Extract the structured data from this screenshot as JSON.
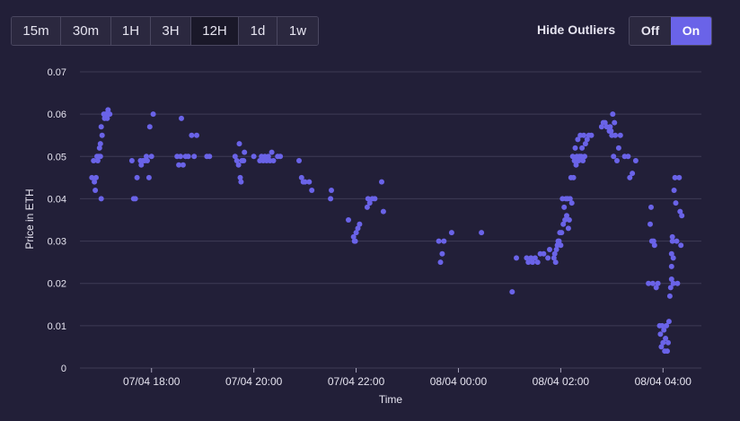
{
  "controls": {
    "time_ranges": [
      {
        "label": "15m",
        "active": false
      },
      {
        "label": "30m",
        "active": false
      },
      {
        "label": "1H",
        "active": false
      },
      {
        "label": "3H",
        "active": false
      },
      {
        "label": "12H",
        "active": true
      },
      {
        "label": "1d",
        "active": false
      },
      {
        "label": "1w",
        "active": false
      }
    ],
    "outlier_label": "Hide Outliers",
    "outlier_off": "Off",
    "outlier_on": "On",
    "outlier_selected": "On"
  },
  "colors": {
    "background": "#221f38",
    "grid": "#3e3b55",
    "point": "#6a63e8",
    "accent": "#6a63e8"
  },
  "chart_data": {
    "type": "scatter",
    "xlabel": "Time",
    "ylabel": "Price in ETH",
    "xlim": [
      "2022-04-07 16:36",
      "2022-04-08 04:45"
    ],
    "ylim": [
      0,
      0.07
    ],
    "yticks": [
      "0",
      "0.01",
      "0.02",
      "0.03",
      "0.04",
      "0.05",
      "0.06",
      "0.07"
    ],
    "xticks": [
      {
        "t": "2022-04-07 18:00",
        "label": "07/04 18:00"
      },
      {
        "t": "2022-04-07 20:00",
        "label": "07/04 20:00"
      },
      {
        "t": "2022-04-07 22:00",
        "label": "07/04 22:00"
      },
      {
        "t": "2022-04-08 00:00",
        "label": "08/04 00:00"
      },
      {
        "t": "2022-04-08 02:00",
        "label": "08/04 02:00"
      },
      {
        "t": "2022-04-08 04:00",
        "label": "08/04 04:00"
      }
    ],
    "grid": true,
    "legend": "none",
    "points": [
      [
        "2022-04-07 16:50",
        0.045
      ],
      [
        "2022-04-07 16:52",
        0.049
      ],
      [
        "2022-04-07 16:53",
        0.044
      ],
      [
        "2022-04-07 16:54",
        0.042
      ],
      [
        "2022-04-07 16:55",
        0.045
      ],
      [
        "2022-04-07 16:56",
        0.05
      ],
      [
        "2022-04-07 16:57",
        0.049
      ],
      [
        "2022-04-07 16:58",
        0.05
      ],
      [
        "2022-04-07 16:59",
        0.052
      ],
      [
        "2022-04-07 17:00",
        0.05
      ],
      [
        "2022-04-07 17:00",
        0.053
      ],
      [
        "2022-04-07 17:01",
        0.04
      ],
      [
        "2022-04-07 17:01",
        0.057
      ],
      [
        "2022-04-07 17:02",
        0.055
      ],
      [
        "2022-04-07 17:04",
        0.06
      ],
      [
        "2022-04-07 17:05",
        0.059
      ],
      [
        "2022-04-07 17:06",
        0.06
      ],
      [
        "2022-04-07 17:07",
        0.06
      ],
      [
        "2022-04-07 17:08",
        0.059
      ],
      [
        "2022-04-07 17:09",
        0.061
      ],
      [
        "2022-04-07 17:10",
        0.06
      ],
      [
        "2022-04-07 17:11",
        0.06
      ],
      [
        "2022-04-07 17:37",
        0.049
      ],
      [
        "2022-04-07 17:39",
        0.04
      ],
      [
        "2022-04-07 17:41",
        0.04
      ],
      [
        "2022-04-07 17:43",
        0.045
      ],
      [
        "2022-04-07 17:47",
        0.049
      ],
      [
        "2022-04-07 17:48",
        0.048
      ],
      [
        "2022-04-07 17:50",
        0.049
      ],
      [
        "2022-04-07 17:52",
        0.049
      ],
      [
        "2022-04-07 17:54",
        0.05
      ],
      [
        "2022-04-07 17:55",
        0.049
      ],
      [
        "2022-04-07 17:57",
        0.045
      ],
      [
        "2022-04-07 17:58",
        0.057
      ],
      [
        "2022-04-07 18:00",
        0.05
      ],
      [
        "2022-04-07 18:02",
        0.06
      ],
      [
        "2022-04-07 18:30",
        0.05
      ],
      [
        "2022-04-07 18:32",
        0.048
      ],
      [
        "2022-04-07 18:34",
        0.05
      ],
      [
        "2022-04-07 18:35",
        0.059
      ],
      [
        "2022-04-07 18:37",
        0.048
      ],
      [
        "2022-04-07 18:40",
        0.05
      ],
      [
        "2022-04-07 18:43",
        0.05
      ],
      [
        "2022-04-07 18:47",
        0.055
      ],
      [
        "2022-04-07 18:50",
        0.05
      ],
      [
        "2022-04-07 18:53",
        0.055
      ],
      [
        "2022-04-07 19:05",
        0.05
      ],
      [
        "2022-04-07 19:08",
        0.05
      ],
      [
        "2022-04-07 19:38",
        0.05
      ],
      [
        "2022-04-07 19:40",
        0.049
      ],
      [
        "2022-04-07 19:42",
        0.048
      ],
      [
        "2022-04-07 19:43",
        0.053
      ],
      [
        "2022-04-07 19:44",
        0.045
      ],
      [
        "2022-04-07 19:45",
        0.044
      ],
      [
        "2022-04-07 19:46",
        0.049
      ],
      [
        "2022-04-07 19:48",
        0.049
      ],
      [
        "2022-04-07 19:49",
        0.051
      ],
      [
        "2022-04-07 20:00",
        0.05
      ],
      [
        "2022-04-07 20:07",
        0.049
      ],
      [
        "2022-04-07 20:09",
        0.05
      ],
      [
        "2022-04-07 20:11",
        0.049
      ],
      [
        "2022-04-07 20:13",
        0.05
      ],
      [
        "2022-04-07 20:15",
        0.049
      ],
      [
        "2022-04-07 20:17",
        0.05
      ],
      [
        "2022-04-07 20:19",
        0.049
      ],
      [
        "2022-04-07 20:21",
        0.051
      ],
      [
        "2022-04-07 20:23",
        0.049
      ],
      [
        "2022-04-07 20:28",
        0.05
      ],
      [
        "2022-04-07 20:31",
        0.05
      ],
      [
        "2022-04-07 20:53",
        0.049
      ],
      [
        "2022-04-07 20:56",
        0.045
      ],
      [
        "2022-04-07 20:58",
        0.044
      ],
      [
        "2022-04-07 21:00",
        0.044
      ],
      [
        "2022-04-07 21:05",
        0.044
      ],
      [
        "2022-04-07 21:08",
        0.042
      ],
      [
        "2022-04-07 21:30",
        0.04
      ],
      [
        "2022-04-07 21:31",
        0.042
      ],
      [
        "2022-04-07 21:51",
        0.035
      ],
      [
        "2022-04-07 21:57",
        0.031
      ],
      [
        "2022-04-07 21:58",
        0.03
      ],
      [
        "2022-04-07 21:59",
        0.03
      ],
      [
        "2022-04-07 22:00",
        0.032
      ],
      [
        "2022-04-07 22:02",
        0.033
      ],
      [
        "2022-04-07 22:04",
        0.034
      ],
      [
        "2022-04-07 22:13",
        0.038
      ],
      [
        "2022-04-07 22:14",
        0.04
      ],
      [
        "2022-04-07 22:16",
        0.039
      ],
      [
        "2022-04-07 22:19",
        0.04
      ],
      [
        "2022-04-07 22:22",
        0.04
      ],
      [
        "2022-04-07 22:30",
        0.044
      ],
      [
        "2022-04-07 22:32",
        0.037
      ],
      [
        "2022-04-07 23:37",
        0.03
      ],
      [
        "2022-04-07 23:39",
        0.025
      ],
      [
        "2022-04-07 23:41",
        0.027
      ],
      [
        "2022-04-07 23:43",
        0.03
      ],
      [
        "2022-04-07 23:52",
        0.032
      ],
      [
        "2022-04-08 00:27",
        0.032
      ],
      [
        "2022-04-08 01:03",
        0.018
      ],
      [
        "2022-04-08 01:08",
        0.026
      ],
      [
        "2022-04-08 01:20",
        0.026
      ],
      [
        "2022-04-08 01:22",
        0.025
      ],
      [
        "2022-04-08 01:25",
        0.026
      ],
      [
        "2022-04-08 01:27",
        0.025
      ],
      [
        "2022-04-08 01:30",
        0.026
      ],
      [
        "2022-04-08 01:33",
        0.025
      ],
      [
        "2022-04-08 01:36",
        0.027
      ],
      [
        "2022-04-08 01:40",
        0.027
      ],
      [
        "2022-04-08 01:45",
        0.026
      ],
      [
        "2022-04-08 01:47",
        0.028
      ],
      [
        "2022-04-08 01:52",
        0.026
      ],
      [
        "2022-04-08 01:53",
        0.027
      ],
      [
        "2022-04-08 01:54",
        0.025
      ],
      [
        "2022-04-08 01:55",
        0.028
      ],
      [
        "2022-04-08 01:56",
        0.029
      ],
      [
        "2022-04-08 01:57",
        0.03
      ],
      [
        "2022-04-08 01:58",
        0.03
      ],
      [
        "2022-04-08 01:59",
        0.032
      ],
      [
        "2022-04-08 02:00",
        0.029
      ],
      [
        "2022-04-08 02:01",
        0.032
      ],
      [
        "2022-04-08 02:02",
        0.04
      ],
      [
        "2022-04-08 02:03",
        0.034
      ],
      [
        "2022-04-08 02:04",
        0.038
      ],
      [
        "2022-04-08 02:05",
        0.035
      ],
      [
        "2022-04-08 02:06",
        0.04
      ],
      [
        "2022-04-08 02:07",
        0.036
      ],
      [
        "2022-04-08 02:08",
        0.04
      ],
      [
        "2022-04-08 02:09",
        0.033
      ],
      [
        "2022-04-08 02:10",
        0.035
      ],
      [
        "2022-04-08 02:11",
        0.04
      ],
      [
        "2022-04-08 02:12",
        0.045
      ],
      [
        "2022-04-08 02:13",
        0.039
      ],
      [
        "2022-04-08 02:14",
        0.05
      ],
      [
        "2022-04-08 02:15",
        0.045
      ],
      [
        "2022-04-08 02:16",
        0.049
      ],
      [
        "2022-04-08 02:17",
        0.052
      ],
      [
        "2022-04-08 02:18",
        0.048
      ],
      [
        "2022-04-08 02:19",
        0.05
      ],
      [
        "2022-04-08 02:20",
        0.054
      ],
      [
        "2022-04-08 02:21",
        0.049
      ],
      [
        "2022-04-08 02:22",
        0.05
      ],
      [
        "2022-04-08 02:23",
        0.055
      ],
      [
        "2022-04-08 02:24",
        0.05
      ],
      [
        "2022-04-08 02:25",
        0.052
      ],
      [
        "2022-04-08 02:26",
        0.049
      ],
      [
        "2022-04-08 02:27",
        0.055
      ],
      [
        "2022-04-08 02:28",
        0.05
      ],
      [
        "2022-04-08 02:29",
        0.053
      ],
      [
        "2022-04-08 02:31",
        0.054
      ],
      [
        "2022-04-08 02:33",
        0.055
      ],
      [
        "2022-04-08 02:36",
        0.055
      ],
      [
        "2022-04-08 02:48",
        0.057
      ],
      [
        "2022-04-08 02:50",
        0.058
      ],
      [
        "2022-04-08 02:52",
        0.058
      ],
      [
        "2022-04-08 02:54",
        0.057
      ],
      [
        "2022-04-08 02:57",
        0.056
      ],
      [
        "2022-04-08 02:58",
        0.057
      ],
      [
        "2022-04-08 02:59",
        0.056
      ],
      [
        "2022-04-08 03:00",
        0.055
      ],
      [
        "2022-04-08 03:01",
        0.06
      ],
      [
        "2022-04-08 03:02",
        0.05
      ],
      [
        "2022-04-08 03:03",
        0.058
      ],
      [
        "2022-04-08 03:04",
        0.055
      ],
      [
        "2022-04-08 03:06",
        0.049
      ],
      [
        "2022-04-08 03:08",
        0.052
      ],
      [
        "2022-04-08 03:10",
        0.055
      ],
      [
        "2022-04-08 03:15",
        0.05
      ],
      [
        "2022-04-08 03:19",
        0.05
      ],
      [
        "2022-04-08 03:21",
        0.045
      ],
      [
        "2022-04-08 03:24",
        0.046
      ],
      [
        "2022-04-08 03:28",
        0.049
      ],
      [
        "2022-04-08 03:43",
        0.02
      ],
      [
        "2022-04-08 03:45",
        0.034
      ],
      [
        "2022-04-08 03:46",
        0.038
      ],
      [
        "2022-04-08 03:47",
        0.03
      ],
      [
        "2022-04-08 03:48",
        0.02
      ],
      [
        "2022-04-08 03:49",
        0.03
      ],
      [
        "2022-04-08 03:50",
        0.029
      ],
      [
        "2022-04-08 03:52",
        0.019
      ],
      [
        "2022-04-08 03:54",
        0.02
      ],
      [
        "2022-04-08 03:56",
        0.01
      ],
      [
        "2022-04-08 03:57",
        0.008
      ],
      [
        "2022-04-08 03:58",
        0.005
      ],
      [
        "2022-04-08 03:59",
        0.01
      ],
      [
        "2022-04-08 04:00",
        0.006
      ],
      [
        "2022-04-08 04:01",
        0.009
      ],
      [
        "2022-04-08 04:02",
        0.004
      ],
      [
        "2022-04-08 04:03",
        0.007
      ],
      [
        "2022-04-08 04:04",
        0.01
      ],
      [
        "2022-04-08 04:05",
        0.004
      ],
      [
        "2022-04-08 04:06",
        0.006
      ],
      [
        "2022-04-08 04:07",
        0.011
      ],
      [
        "2022-04-08 04:08",
        0.017
      ],
      [
        "2022-04-08 04:09",
        0.019
      ],
      [
        "2022-04-08 04:10",
        0.021
      ],
      [
        "2022-04-08 04:10",
        0.024
      ],
      [
        "2022-04-08 04:10",
        0.027
      ],
      [
        "2022-04-08 04:11",
        0.031
      ],
      [
        "2022-04-08 04:11",
        0.03
      ],
      [
        "2022-04-08 04:12",
        0.026
      ],
      [
        "2022-04-08 04:12",
        0.02
      ],
      [
        "2022-04-08 04:13",
        0.042
      ],
      [
        "2022-04-08 04:14",
        0.045
      ],
      [
        "2022-04-08 04:15",
        0.039
      ],
      [
        "2022-04-08 04:16",
        0.03
      ],
      [
        "2022-04-08 04:17",
        0.02
      ],
      [
        "2022-04-08 04:19",
        0.045
      ],
      [
        "2022-04-08 04:20",
        0.037
      ],
      [
        "2022-04-08 04:21",
        0.029
      ],
      [
        "2022-04-08 04:22",
        0.036
      ]
    ]
  }
}
